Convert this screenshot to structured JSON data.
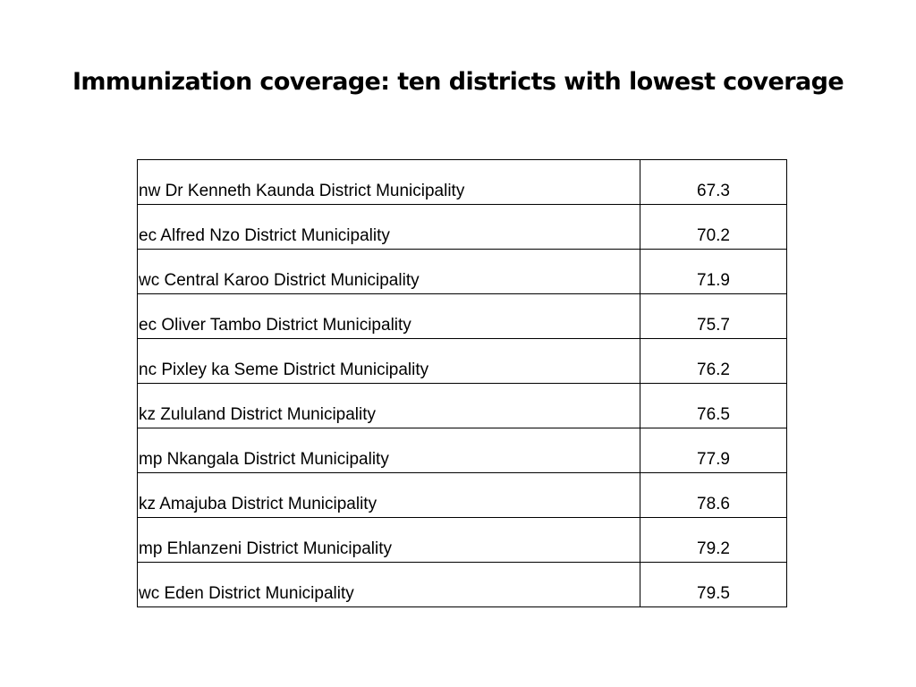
{
  "slide": {
    "title": "Immunization coverage: ten districts with lowest coverage"
  },
  "table": {
    "rows": [
      {
        "district": "nw Dr Kenneth Kaunda District Municipality",
        "value": "67.3"
      },
      {
        "district": "ec Alfred Nzo District Municipality",
        "value": "70.2"
      },
      {
        "district": "wc Central Karoo District Municipality",
        "value": "71.9"
      },
      {
        "district": "ec Oliver Tambo District Municipality",
        "value": "75.7"
      },
      {
        "district": "nc Pixley ka Seme District Municipality",
        "value": "76.2"
      },
      {
        "district": "kz Zululand District Municipality",
        "value": "76.5"
      },
      {
        "district": "mp Nkangala District Municipality",
        "value": "77.9"
      },
      {
        "district": "kz Amajuba District Municipality",
        "value": "78.6"
      },
      {
        "district": "mp Ehlanzeni District Municipality",
        "value": "79.2"
      },
      {
        "district": "wc Eden District Municipality",
        "value": "79.5"
      }
    ]
  }
}
